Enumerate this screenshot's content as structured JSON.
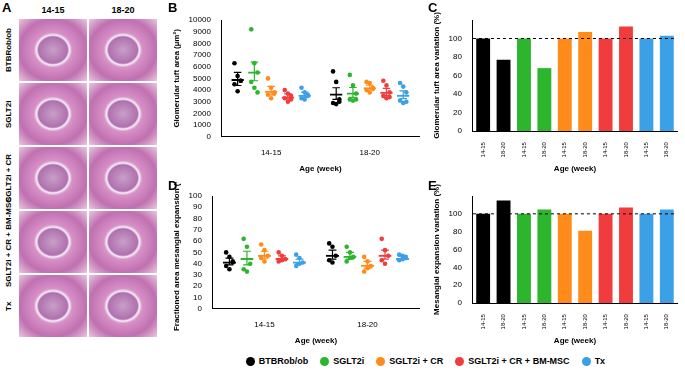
{
  "panel_a": {
    "panel": "A",
    "columns": [
      "14-15",
      "18-20"
    ],
    "rows": [
      "BTBRob/ob",
      "SGLT2i",
      "SGLT2i + CR",
      "SGLT2i + CR + BM-MSC",
      "Tx"
    ]
  },
  "chart_data": [
    {
      "panel": "B",
      "type": "bar",
      "marker": "circle",
      "legend": "bottom",
      "grid": false,
      "x_label": "Age (week)",
      "y_label": "Glomerular tuft area (µm²)",
      "categories": [
        "14-15",
        "18-20"
      ],
      "ylim": [
        0,
        10000
      ],
      "yticks": [
        0,
        1000,
        2000,
        3000,
        4000,
        5000,
        6000,
        7000,
        8000,
        9000,
        10000
      ],
      "series": [
        {
          "name": "BTBRob/ob",
          "color": "#000000",
          "values": [
            4950,
            3700
          ],
          "errors": [
            560,
            500
          ],
          "points": [
            [
              6300,
              5200,
              4800,
              4500,
              3900,
              4800
            ],
            [
              5600,
              4700,
              3200,
              2900,
              2800,
              3000
            ]
          ]
        },
        {
          "name": "SGLT2i",
          "color": "#2db52d",
          "values": [
            5600,
            3800
          ],
          "errors": [
            800,
            420
          ],
          "points": [
            [
              9200,
              6300,
              5500,
              4700,
              4200,
              3800
            ],
            [
              5300,
              4400,
              3700,
              3200,
              3100,
              3200
            ]
          ]
        },
        {
          "name": "SGLT2i + CR",
          "color": "#ff8c1a",
          "values": [
            3950,
            4250
          ],
          "errors": [
            370,
            180
          ],
          "points": [
            [
              5000,
              4200,
              3800,
              3600,
              3300,
              3700
            ],
            [
              4700,
              4600,
              4200,
              4000,
              3800,
              4100
            ]
          ]
        },
        {
          "name": "SGLT2i + CR + BM-MSC",
          "color": "#f03c3c",
          "values": [
            3450,
            3850
          ],
          "errors": [
            220,
            300
          ],
          "points": [
            [
              4000,
              3700,
              3500,
              3300,
              3000,
              3200
            ],
            [
              4800,
              4400,
              3800,
              3500,
              3300,
              3400
            ]
          ]
        },
        {
          "name": "Tx",
          "color": "#3ca0e6",
          "values": [
            3600,
            3600
          ],
          "errors": [
            220,
            330
          ],
          "points": [
            [
              4200,
              3800,
              3500,
              3300,
              3200,
              3600
            ],
            [
              4600,
              4300,
              3800,
              3100,
              2900,
              3000
            ]
          ]
        }
      ]
    },
    {
      "panel": "C",
      "type": "bar",
      "grid": false,
      "x_label": "Age (week)",
      "y_label": "Glomerular tuft area variation (%)",
      "categories": [
        "14-15",
        "18-20",
        "14-15",
        "18-20",
        "14-15",
        "18-20",
        "14-15",
        "18-20",
        "14-15",
        "18-20"
      ],
      "values": [
        100,
        77,
        100,
        68,
        100,
        107,
        100,
        113,
        100,
        103
      ],
      "colors": [
        "#000000",
        "#000000",
        "#2db52d",
        "#2db52d",
        "#ff8c1a",
        "#ff8c1a",
        "#f03c3c",
        "#f03c3c",
        "#3ca0e6",
        "#3ca0e6"
      ],
      "reference_line": 100,
      "ylim": [
        0,
        120
      ],
      "yticks": [
        0,
        20,
        40,
        60,
        80,
        100
      ]
    },
    {
      "panel": "D",
      "type": "bar",
      "marker": "circle",
      "grid": false,
      "x_label": "Age (week)",
      "y_label": "Fractioned area mesangial expansion (%)",
      "categories": [
        "14-15",
        "18-20"
      ],
      "ylim": [
        0,
        100
      ],
      "yticks": [
        0,
        10,
        20,
        30,
        40,
        50,
        60,
        70,
        80,
        90,
        100
      ],
      "series": [
        {
          "name": "BTBRob/ob",
          "color": "#000000",
          "values": [
            42,
            48
          ],
          "errors": [
            3,
            4
          ],
          "points": [
            [
              50,
              46,
              42,
              38,
              35,
              41
            ],
            [
              58,
              55,
              47,
              43,
              41
            ]
          ]
        },
        {
          "name": "SGLT2i",
          "color": "#2db52d",
          "values": [
            45,
            47
          ],
          "errors": [
            6,
            3
          ],
          "points": [
            [
              62,
              55,
              40,
              35,
              33
            ],
            [
              55,
              50,
              46,
              42,
              45
            ]
          ]
        },
        {
          "name": "SGLT2i + CR",
          "color": "#ff8c1a",
          "values": [
            48,
            39
          ],
          "errors": [
            3,
            3
          ],
          "points": [
            [
              57,
              52,
              47,
              45,
              42
            ],
            [
              46,
              42,
              38,
              33,
              36
            ]
          ]
        },
        {
          "name": "SGLT2i + CR + BM-MSC",
          "color": "#f03c3c",
          "values": [
            45,
            48
          ],
          "errors": [
            2,
            4
          ],
          "points": [
            [
              50,
              47,
              44,
              42,
              43
            ],
            [
              62,
              52,
              47,
              43,
              40
            ]
          ]
        },
        {
          "name": "Tx",
          "color": "#3ca0e6",
          "values": [
            42,
            45
          ],
          "errors": [
            2,
            1.5
          ],
          "points": [
            [
              48,
              45,
              41,
              38,
              40
            ],
            [
              48,
              47,
              46,
              43,
              44
            ]
          ]
        }
      ]
    },
    {
      "panel": "E",
      "type": "bar",
      "grid": false,
      "x_label": "Age (week)",
      "y_label": "Mesangial expansion variation (%)",
      "categories": [
        "14-15",
        "18-20",
        "14-15",
        "18-20",
        "14-15",
        "18-20",
        "14-15",
        "18-20",
        "14-15",
        "18-20"
      ],
      "values": [
        100,
        115,
        100,
        105,
        100,
        81,
        100,
        107,
        100,
        105
      ],
      "colors": [
        "#000000",
        "#000000",
        "#2db52d",
        "#2db52d",
        "#ff8c1a",
        "#ff8c1a",
        "#f03c3c",
        "#f03c3c",
        "#3ca0e6",
        "#3ca0e6"
      ],
      "reference_line": 100,
      "ylim": [
        0,
        120
      ],
      "yticks": [
        0,
        20,
        40,
        60,
        80,
        100
      ]
    }
  ]
}
